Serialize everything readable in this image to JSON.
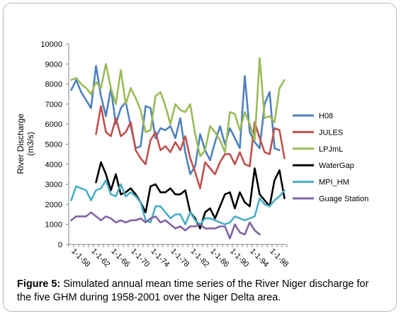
{
  "chart_data": {
    "type": "line",
    "title": "",
    "xlabel": "",
    "ylabel": "River Discharge",
    "ylabel_unit": "(m3/s)",
    "ylim": [
      0,
      10000
    ],
    "yticks": [
      "0",
      "1000",
      "2000",
      "3000",
      "4000",
      "5000",
      "6000",
      "7000",
      "8000",
      "9000",
      "10000"
    ],
    "x": [
      "1-1-1958",
      "1-1-1959",
      "1-1-1960",
      "1-1-1961",
      "1-1-1962",
      "1-1-1963",
      "1-1-1964",
      "1-1-1965",
      "1-1-1966",
      "1-1-1967",
      "1-1-1968",
      "1-1-1969",
      "1-1-1970",
      "1-1-1971",
      "1-1-1972",
      "1-1-1973",
      "1-1-1974",
      "1-1-1975",
      "1-1-1976",
      "1-1-1977",
      "1-1-1978",
      "1-1-1979",
      "1-1-1980",
      "1-1-1981",
      "1-1-1982",
      "1-1-1983",
      "1-1-1984",
      "1-1-1985",
      "1-1-1986",
      "1-1-1987",
      "1-1-1988",
      "1-1-1989",
      "1-1-1990",
      "1-1-1991",
      "1-1-1992",
      "1-1-1993",
      "1-1-1994",
      "1-1-1995",
      "1-1-1996",
      "1-1-1997",
      "1-1-1998",
      "1-1-1999",
      "1-1-2000",
      "1-1-2001"
    ],
    "xtick_labels": [
      "1-1-58",
      "1-1-62",
      "1-1-66",
      "1-1-70",
      "1-1-74",
      "1-1-78",
      "1-1-82",
      "1-1-86",
      "1-1-90",
      "1-1-94",
      "1-1-98"
    ],
    "grid": false,
    "legend_position": "right",
    "series": [
      {
        "name": "H08",
        "color": "#4f81bd",
        "values": [
          7700,
          8200,
          7600,
          7200,
          6800,
          8900,
          7400,
          6400,
          7800,
          6000,
          6800,
          7100,
          5900,
          4800,
          4900,
          6900,
          6800,
          5300,
          5800,
          5700,
          5900,
          5300,
          6300,
          4600,
          3500,
          3900,
          5500,
          4700,
          4200,
          5100,
          5900,
          5000,
          5800,
          5300,
          4800,
          8400,
          5600,
          5100,
          4800,
          7000,
          7600,
          4800,
          4700,
          null
        ]
      },
      {
        "name": "JULES",
        "color": "#c0504d",
        "values": [
          null,
          null,
          null,
          null,
          null,
          5500,
          6900,
          5600,
          5400,
          6300,
          5400,
          5600,
          6100,
          4700,
          4300,
          4000,
          5200,
          5600,
          4700,
          4900,
          4600,
          5100,
          4700,
          5400,
          4300,
          3600,
          2800,
          4100,
          3800,
          3500,
          4100,
          4500,
          4500,
          4000,
          4600,
          4000,
          3900,
          6100,
          5300,
          4600,
          4500,
          5800,
          5700,
          4300
        ]
      },
      {
        "name": "LPJmL",
        "color": "#9bbb59",
        "values": [
          8200,
          8300,
          8000,
          7800,
          7500,
          8100,
          7800,
          9000,
          7800,
          7000,
          8700,
          7000,
          7800,
          7300,
          6700,
          5600,
          5700,
          7400,
          7600,
          6900,
          6000,
          7000,
          6700,
          6600,
          7000,
          5500,
          4400,
          4700,
          5900,
          5600,
          5200,
          4600,
          6600,
          6500,
          5700,
          6600,
          6000,
          5200,
          9300,
          6300,
          6400,
          6100,
          7800,
          8200
        ]
      },
      {
        "name": "WaterGap",
        "color": "#000000",
        "values": [
          null,
          null,
          null,
          null,
          null,
          3100,
          4100,
          3500,
          2700,
          3500,
          2500,
          2600,
          2800,
          2500,
          2100,
          1600,
          2900,
          3000,
          2600,
          2600,
          2800,
          2500,
          2500,
          2700,
          1600,
          1300,
          800,
          1600,
          1800,
          1300,
          1900,
          2500,
          2600,
          1800,
          2600,
          2100,
          1900,
          3800,
          2500,
          2200,
          1900,
          3200,
          3700,
          2300
        ]
      },
      {
        "name": "MPI_HM",
        "color": "#4bacc6",
        "values": [
          2200,
          2900,
          2800,
          2700,
          2200,
          2700,
          2800,
          3200,
          2500,
          2400,
          3000,
          2400,
          2600,
          2400,
          2100,
          1200,
          1100,
          1900,
          1900,
          1600,
          1300,
          1500,
          1500,
          1000,
          1600,
          1200,
          1000,
          1300,
          1300,
          1200,
          1100,
          1000,
          1100,
          1400,
          1300,
          1200,
          1300,
          1400,
          2300,
          2000,
          1900,
          2200,
          2400,
          2700
        ]
      },
      {
        "name": "Guage Station",
        "color": "#8064a2",
        "values": [
          1200,
          1400,
          1400,
          1400,
          1600,
          1400,
          1200,
          1400,
          1300,
          1100,
          1200,
          1100,
          1200,
          1200,
          1300,
          1100,
          1300,
          1400,
          1100,
          1200,
          1000,
          800,
          900,
          700,
          900,
          900,
          1000,
          800,
          800,
          800,
          900,
          900,
          300,
          1000,
          600,
          500,
          1100,
          700,
          500,
          null,
          null,
          null,
          null,
          null
        ]
      }
    ]
  },
  "caption": {
    "label": "Figure 5:",
    "text": " Simulated annual mean time series of the River Niger discharge for the five GHM during 1958-2001 over the Niger Delta area."
  }
}
